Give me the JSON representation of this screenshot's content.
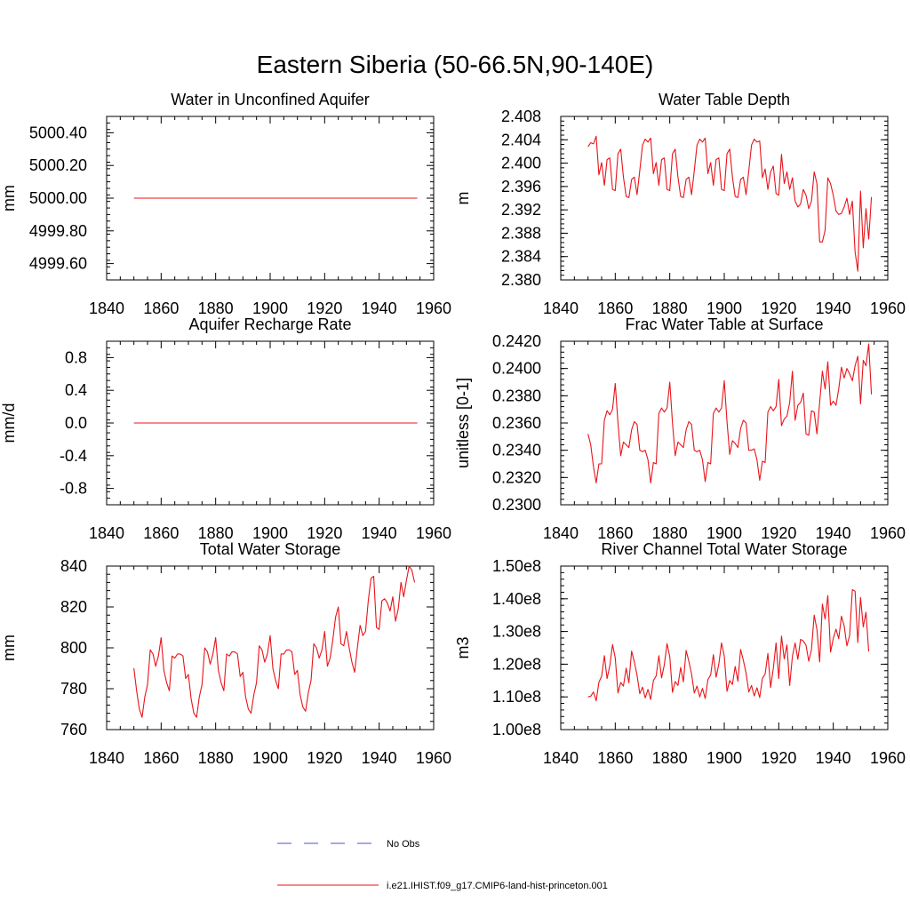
{
  "title": "Eastern Siberia (50-66.5N,90-140E)",
  "colors": {
    "model": "#e8141a",
    "obs": "#4a55c8",
    "axis": "#000000"
  },
  "legend": {
    "obs_label": "No Obs",
    "model_label": "i.e21.IHIST.f09_g17.CMIP6-land-hist-princeton.001"
  },
  "chart_data": [
    {
      "type": "line",
      "title": "Water in Unconfined Aquifer",
      "ylabel": "mm",
      "xlim": [
        1840,
        1960
      ],
      "ylim": [
        4999.5,
        5000.5
      ],
      "xticks": [
        1840,
        1860,
        1880,
        1900,
        1920,
        1940,
        1960
      ],
      "yticks": [
        4999.6,
        4999.8,
        5000.0,
        5000.2,
        5000.4
      ],
      "ytick_labels": [
        "4999.60",
        "4999.80",
        "5000.00",
        "5000.20",
        "5000.40"
      ],
      "x_start": 1850,
      "series": [
        {
          "values": [
            5000.0,
            5000.0,
            5000.0,
            5000.0,
            5000.0,
            5000.0,
            5000.0,
            5000.0,
            5000.0,
            5000.0,
            5000.0,
            5000.0,
            5000.0,
            5000.0,
            5000.0,
            5000.0,
            5000.0,
            5000.0,
            5000.0,
            5000.0,
            5000.0,
            5000.0,
            5000.0,
            5000.0,
            5000.0,
            5000.0,
            5000.0,
            5000.0,
            5000.0,
            5000.0,
            5000.0,
            5000.0,
            5000.0,
            5000.0,
            5000.0,
            5000.0,
            5000.0,
            5000.0,
            5000.0,
            5000.0,
            5000.0,
            5000.0,
            5000.0,
            5000.0,
            5000.0,
            5000.0,
            5000.0,
            5000.0,
            5000.0,
            5000.0,
            5000.0,
            5000.0,
            5000.0,
            5000.0,
            5000.0,
            5000.0,
            5000.0,
            5000.0,
            5000.0,
            5000.0,
            5000.0,
            5000.0,
            5000.0,
            5000.0,
            5000.0,
            5000.0,
            5000.0,
            5000.0,
            5000.0,
            5000.0,
            5000.0,
            5000.0,
            5000.0,
            5000.0,
            5000.0,
            5000.0,
            5000.0,
            5000.0,
            5000.0,
            5000.0,
            5000.0,
            5000.0,
            5000.0,
            5000.0,
            5000.0,
            5000.0,
            5000.0,
            5000.0,
            5000.0,
            5000.0,
            5000.0,
            5000.0,
            5000.0,
            5000.0,
            5000.0,
            5000.0,
            5000.0,
            5000.0,
            5000.0,
            5000.0,
            5000.0,
            5000.0,
            5000.0,
            5000.0,
            5000.0
          ]
        }
      ]
    },
    {
      "type": "line",
      "title": "Water Table Depth",
      "ylabel": "m",
      "xlim": [
        1840,
        1960
      ],
      "ylim": [
        2.38,
        2.408
      ],
      "xticks": [
        1840,
        1860,
        1880,
        1900,
        1920,
        1940,
        1960
      ],
      "yticks": [
        2.38,
        2.384,
        2.388,
        2.392,
        2.396,
        2.4,
        2.404,
        2.408
      ],
      "ytick_labels": [
        "2.380",
        "2.384",
        "2.388",
        "2.392",
        "2.396",
        "2.400",
        "2.404",
        "2.408"
      ],
      "x_start": 1850,
      "series": [
        {
          "values": [
            2.4028,
            2.4035,
            2.4033,
            2.4046,
            2.398,
            2.4001,
            2.3962,
            2.4006,
            2.4009,
            2.3955,
            2.3953,
            2.4016,
            2.4024,
            2.3976,
            2.3943,
            2.3941,
            2.3972,
            2.3976,
            2.3946,
            2.3987,
            2.4031,
            2.4041,
            2.4036,
            2.4043,
            2.3982,
            2.4001,
            2.3962,
            2.4006,
            2.4009,
            2.3955,
            2.3953,
            2.4016,
            2.4024,
            2.3976,
            2.3943,
            2.3941,
            2.3972,
            2.3976,
            2.3946,
            2.3987,
            2.4031,
            2.4041,
            2.4036,
            2.4043,
            2.3982,
            2.4001,
            2.3962,
            2.4006,
            2.4009,
            2.3955,
            2.3953,
            2.4016,
            2.4024,
            2.3976,
            2.3943,
            2.3941,
            2.3972,
            2.3976,
            2.3946,
            2.3987,
            2.4031,
            2.4041,
            2.4036,
            2.4038,
            2.3975,
            2.399,
            2.3955,
            2.3985,
            2.3995,
            2.3948,
            2.3945,
            2.4015,
            2.3965,
            2.3985,
            2.3955,
            2.3975,
            2.3935,
            2.3925,
            2.393,
            2.3955,
            2.3945,
            2.3922,
            2.3935,
            2.3985,
            2.3965,
            2.3865,
            2.3865,
            2.3885,
            2.3975,
            2.3965,
            2.3945,
            2.3918,
            2.3912,
            2.3914,
            2.3925,
            2.394,
            2.3912,
            2.3935,
            2.3848,
            2.3815,
            2.3952,
            2.3855,
            2.3922,
            2.387,
            2.3942
          ]
        }
      ]
    },
    {
      "type": "line",
      "title": "Aquifer Recharge Rate",
      "ylabel": "mm/d",
      "xlim": [
        1840,
        1960
      ],
      "ylim": [
        -1.0,
        1.0
      ],
      "xticks": [
        1840,
        1860,
        1880,
        1900,
        1920,
        1940,
        1960
      ],
      "yticks": [
        -0.8,
        -0.4,
        0.0,
        0.4,
        0.8
      ],
      "ytick_labels": [
        "-0.8",
        "-0.4",
        "0.0",
        "0.4",
        "0.8"
      ],
      "x_start": 1850,
      "series": [
        {
          "values": [
            0.0,
            0.0,
            0.0,
            0.0,
            0.0,
            0.0,
            0.0,
            0.0,
            0.0,
            0.0,
            0.0,
            0.0,
            0.0,
            0.0,
            0.0,
            0.0,
            0.0,
            0.0,
            0.0,
            0.0,
            0.0,
            0.0,
            0.0,
            0.0,
            0.0,
            0.0,
            0.0,
            0.0,
            0.0,
            0.0,
            0.0,
            0.0,
            0.0,
            0.0,
            0.0,
            0.0,
            0.0,
            0.0,
            0.0,
            0.0,
            0.0,
            0.0,
            0.0,
            0.0,
            0.0,
            0.0,
            0.0,
            0.0,
            0.0,
            0.0,
            0.0,
            0.0,
            0.0,
            0.0,
            0.0,
            0.0,
            0.0,
            0.0,
            0.0,
            0.0,
            0.0,
            0.0,
            0.0,
            0.0,
            0.0,
            0.0,
            0.0,
            0.0,
            0.0,
            0.0,
            0.0,
            0.0,
            0.0,
            0.0,
            0.0,
            0.0,
            0.0,
            0.0,
            0.0,
            0.0,
            0.0,
            0.0,
            0.0,
            0.0,
            0.0,
            0.0,
            0.0,
            0.0,
            0.0,
            0.0,
            0.0,
            0.0,
            0.0,
            0.0,
            0.0,
            0.0,
            0.0,
            0.0,
            0.0,
            0.0,
            0.0,
            0.0,
            0.0,
            0.0,
            0.0
          ]
        }
      ]
    },
    {
      "type": "line",
      "title": "Frac Water Table at Surface",
      "ylabel": "unitless [0-1]",
      "xlim": [
        1840,
        1960
      ],
      "ylim": [
        0.23,
        0.242
      ],
      "xticks": [
        1840,
        1860,
        1880,
        1900,
        1920,
        1940,
        1960
      ],
      "yticks": [
        0.23,
        0.232,
        0.234,
        0.236,
        0.238,
        0.24,
        0.242
      ],
      "ytick_labels": [
        "0.2300",
        "0.2320",
        "0.2340",
        "0.2360",
        "0.2380",
        "0.2400",
        "0.2420"
      ],
      "x_start": 1850,
      "series": [
        {
          "values": [
            0.2352,
            0.2344,
            0.2328,
            0.2316,
            0.233,
            0.233,
            0.2362,
            0.2369,
            0.2366,
            0.237,
            0.2389,
            0.236,
            0.2336,
            0.2346,
            0.2344,
            0.2342,
            0.2355,
            0.2361,
            0.2359,
            0.234,
            0.2339,
            0.234,
            0.2333,
            0.2316,
            0.2331,
            0.233,
            0.2367,
            0.2371,
            0.2368,
            0.2371,
            0.239,
            0.236,
            0.2336,
            0.2346,
            0.2344,
            0.2342,
            0.2355,
            0.2361,
            0.2359,
            0.234,
            0.2339,
            0.234,
            0.2333,
            0.2317,
            0.2331,
            0.233,
            0.2367,
            0.2371,
            0.2368,
            0.2371,
            0.2391,
            0.2361,
            0.2337,
            0.2347,
            0.2345,
            0.2342,
            0.2356,
            0.2362,
            0.236,
            0.234,
            0.234,
            0.2341,
            0.2333,
            0.2318,
            0.2332,
            0.2331,
            0.2368,
            0.2372,
            0.2369,
            0.2372,
            0.2392,
            0.2358,
            0.2363,
            0.2365,
            0.2375,
            0.2398,
            0.2362,
            0.2373,
            0.2375,
            0.2382,
            0.2352,
            0.2351,
            0.2369,
            0.2368,
            0.2352,
            0.2375,
            0.2398,
            0.2385,
            0.2405,
            0.2373,
            0.2376,
            0.2373,
            0.2385,
            0.2401,
            0.2393,
            0.24,
            0.2396,
            0.2391,
            0.2402,
            0.2409,
            0.2374,
            0.2406,
            0.2402,
            0.2418,
            0.2381
          ]
        }
      ]
    },
    {
      "type": "line",
      "title": "Total Water Storage",
      "ylabel": "mm",
      "xlim": [
        1840,
        1960
      ],
      "ylim": [
        760,
        840
      ],
      "xticks": [
        1840,
        1860,
        1880,
        1900,
        1920,
        1940,
        1960
      ],
      "yticks": [
        760,
        780,
        800,
        820,
        840
      ],
      "ytick_labels": [
        "760",
        "780",
        "800",
        "820",
        "840"
      ],
      "x_start": 1850,
      "series": [
        {
          "values": [
            790,
            779,
            770,
            766,
            776,
            782,
            799,
            797,
            791,
            796,
            805,
            789,
            783,
            779,
            796,
            795,
            797,
            797,
            796,
            785,
            787,
            775,
            768,
            766,
            776,
            782,
            800,
            798,
            792,
            797,
            805,
            789,
            783,
            779,
            797,
            796,
            798,
            798,
            797,
            786,
            788,
            776,
            770,
            768,
            777,
            783,
            801,
            799,
            793,
            797,
            806,
            790,
            784,
            780,
            797,
            797,
            799,
            799,
            798,
            787,
            789,
            777,
            771,
            769,
            778,
            784,
            802,
            800,
            795,
            799,
            808,
            791,
            795,
            804,
            815,
            820,
            802,
            801,
            808,
            800,
            793,
            788,
            800,
            811,
            806,
            808,
            823,
            834,
            835,
            810,
            809,
            823,
            824,
            822,
            818,
            825,
            813,
            819,
            832,
            825,
            833,
            840,
            838,
            832
          ]
        }
      ]
    },
    {
      "type": "line",
      "title": "River Channel Total Water Storage",
      "ylabel": "m3",
      "xlim": [
        1840,
        1960
      ],
      "ylim": [
        100000000,
        150000000
      ],
      "xticks": [
        1840,
        1860,
        1880,
        1900,
        1920,
        1940,
        1960
      ],
      "yticks": [
        100000000,
        110000000,
        120000000,
        130000000,
        140000000,
        150000000
      ],
      "ytick_labels": [
        "1.00e8",
        "1.10e8",
        "1.20e8",
        "1.30e8",
        "1.40e8",
        "1.50e8"
      ],
      "x_start": 1850,
      "series": [
        {
          "values": [
            110000000,
            110200000,
            111500000,
            108800000,
            114500000,
            116300000,
            122600000,
            115600000,
            119500000,
            126000000,
            121900000,
            111200000,
            114400000,
            113300000,
            118800000,
            114300000,
            124000000,
            120700000,
            116600000,
            111000000,
            113000000,
            109700000,
            112300000,
            109200000,
            115000000,
            116400000,
            122600000,
            115800000,
            119800000,
            126300000,
            122300000,
            111400000,
            114700000,
            113500000,
            119000000,
            114600000,
            124200000,
            120900000,
            117000000,
            111200000,
            113300000,
            110000000,
            112600000,
            109500000,
            115300000,
            116700000,
            122900000,
            116000000,
            120000000,
            126500000,
            122500000,
            111700000,
            115000000,
            113800000,
            119300000,
            114800000,
            124500000,
            121200000,
            117300000,
            111500000,
            113500000,
            110300000,
            112800000,
            109800000,
            115700000,
            117000000,
            123300000,
            112900000,
            118700000,
            126500000,
            115600000,
            128600000,
            121600000,
            125900000,
            113500000,
            122400000,
            126500000,
            121500000,
            127600000,
            127100000,
            125800000,
            120900000,
            124500000,
            135000000,
            130600000,
            120700000,
            138400000,
            133800000,
            141000000,
            123700000,
            127900000,
            130700000,
            127800000,
            134700000,
            131700000,
            125600000,
            128800000,
            142800000,
            142300000,
            126600000,
            140400000,
            131400000,
            135900000,
            123900000
          ]
        }
      ]
    }
  ]
}
